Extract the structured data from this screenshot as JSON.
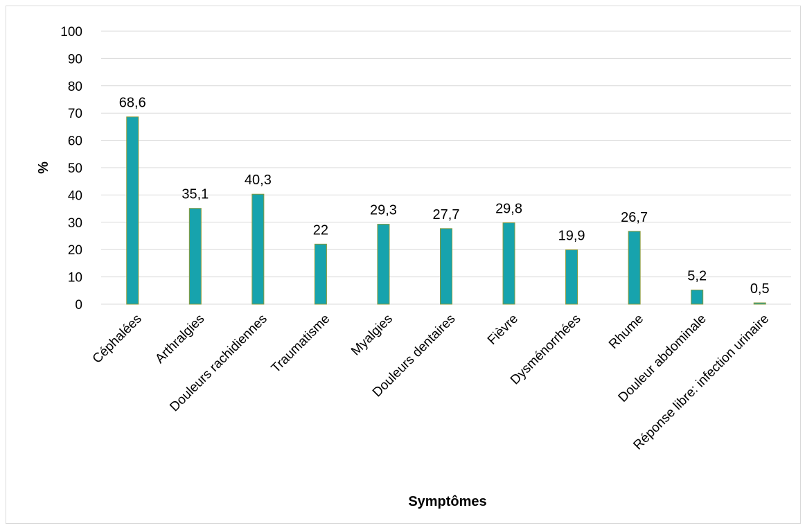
{
  "chart_data": {
    "type": "bar",
    "categories": [
      "Céphalées",
      "Arthralgies",
      "Douleurs rachidiennes",
      "Traumatisme",
      "Myalgies",
      "Douleurs dentaires",
      "Fièvre",
      "Dysménorrhées",
      "Rhume",
      "Douleur abdominale",
      "Réponse libre: infection urinaire"
    ],
    "values": [
      68.6,
      35.1,
      40.3,
      22,
      29.3,
      27.7,
      29.8,
      19.9,
      26.7,
      5.2,
      0.5
    ],
    "data_labels": [
      "68,6",
      "35,1",
      "40,3",
      "22",
      "29,3",
      "27,7",
      "29,8",
      "19,9",
      "26,7",
      "5,2",
      "0,5"
    ],
    "xlabel": "Symptômes",
    "ylabel": "%",
    "ylim": [
      0,
      100
    ],
    "yticks": [
      0,
      10,
      20,
      30,
      40,
      50,
      60,
      70,
      80,
      90,
      100
    ],
    "grid": true,
    "legend": "none",
    "bar_color": "#17a3ad",
    "bar_edge_color": "#8a9a3a",
    "gridline_color": "#d9d9d9"
  }
}
